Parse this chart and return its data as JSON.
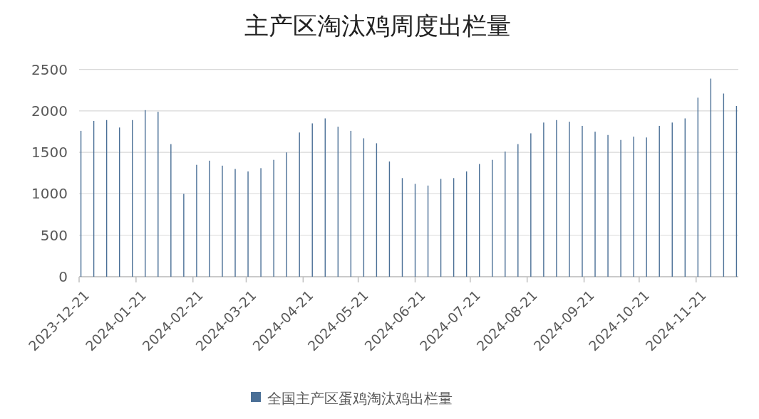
{
  "chart_data": {
    "type": "bar",
    "title": "主产区淘汰鸡周度出栏量",
    "x": [
      "2023-12-22",
      "2023-12-29",
      "2024-01-05",
      "2024-01-12",
      "2024-01-19",
      "2024-01-26",
      "2024-02-02",
      "2024-02-09",
      "2024-02-16",
      "2024-02-23",
      "2024-03-01",
      "2024-03-08",
      "2024-03-15",
      "2024-03-22",
      "2024-03-29",
      "2024-04-05",
      "2024-04-12",
      "2024-04-19",
      "2024-04-26",
      "2024-05-03",
      "2024-05-10",
      "2024-05-17",
      "2024-05-24",
      "2024-05-31",
      "2024-06-07",
      "2024-06-14",
      "2024-06-21",
      "2024-06-28",
      "2024-07-05",
      "2024-07-12",
      "2024-07-19",
      "2024-07-26",
      "2024-08-02",
      "2024-08-09",
      "2024-08-16",
      "2024-08-23",
      "2024-08-30",
      "2024-09-06",
      "2024-09-13",
      "2024-09-20",
      "2024-09-27",
      "2024-10-04",
      "2024-10-11",
      "2024-10-18",
      "2024-10-25",
      "2024-11-01",
      "2024-11-08",
      "2024-11-15",
      "2024-11-22",
      "2024-11-29",
      "2024-12-06",
      "2024-12-13"
    ],
    "series": [
      {
        "name": "全国主产区蛋鸡淘汰鸡出栏量",
        "color": "#4a6f96",
        "values": [
          1760,
          1880,
          1890,
          1800,
          1890,
          2010,
          1990,
          1600,
          1000,
          1350,
          1400,
          1340,
          1300,
          1270,
          1310,
          1410,
          1500,
          1740,
          1850,
          1910,
          1810,
          1760,
          1670,
          1610,
          1390,
          1190,
          1120,
          1100,
          1180,
          1190,
          1270,
          1360,
          1410,
          1510,
          1600,
          1730,
          1860,
          1890,
          1870,
          1820,
          1750,
          1710,
          1650,
          1690,
          1680,
          1820,
          1860,
          1910,
          2160,
          2390,
          2210,
          2060
        ]
      }
    ],
    "xlim": [
      "2023-12-21",
      "2024-12-14"
    ],
    "xticks": [
      "2023-12-21",
      "2024-01-21",
      "2024-02-21",
      "2024-03-21",
      "2024-04-21",
      "2024-05-21",
      "2024-06-21",
      "2024-07-21",
      "2024-08-21",
      "2024-09-21",
      "2024-10-21",
      "2024-11-21"
    ],
    "ylim": [
      0,
      2500
    ],
    "yticks": [
      0,
      500,
      1000,
      1500,
      2000,
      2500
    ],
    "grid": "y",
    "legend": "bottom"
  }
}
